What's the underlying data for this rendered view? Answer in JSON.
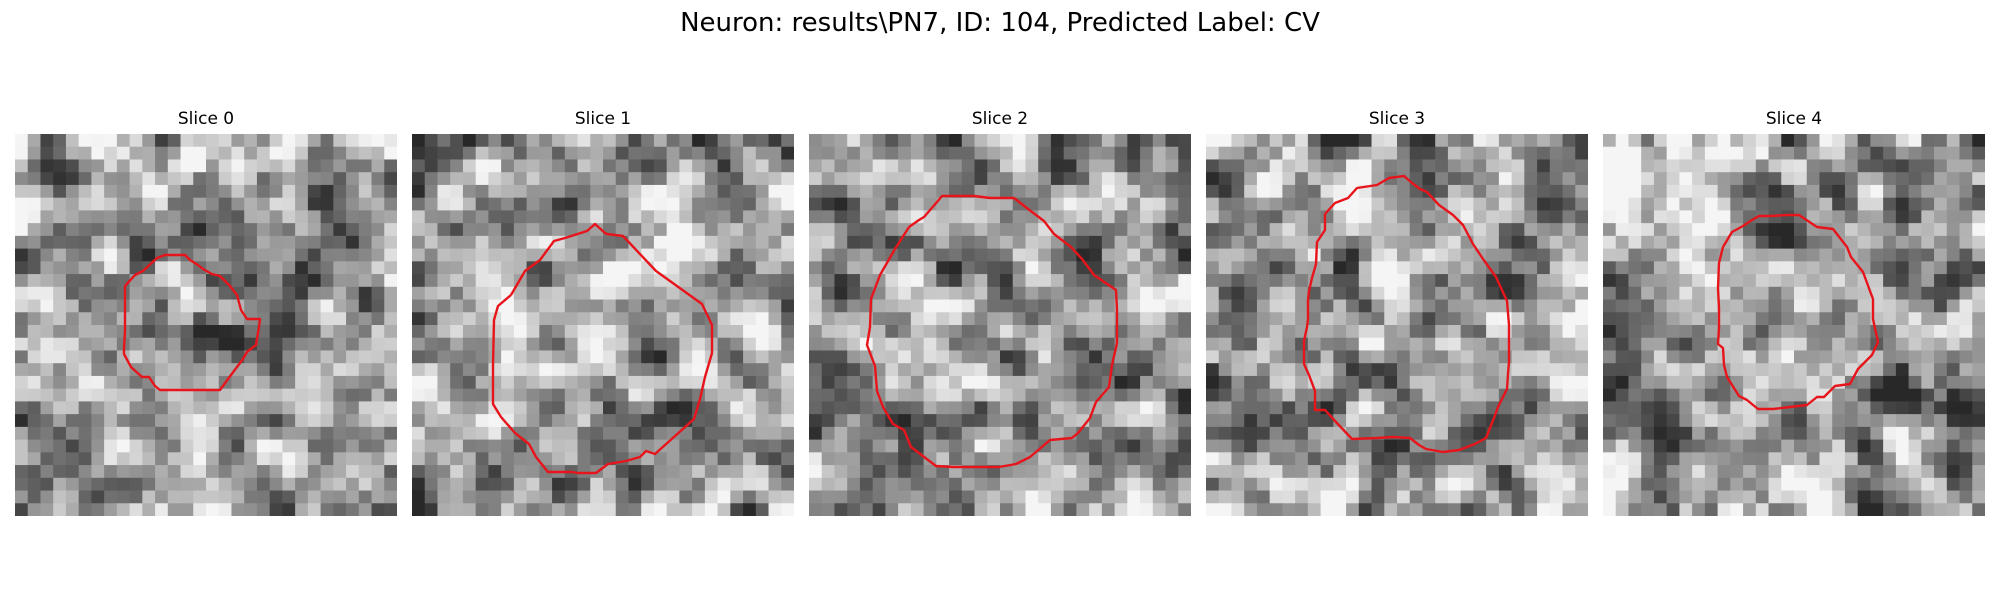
{
  "figure": {
    "title": "Neuron: results\\PN7, ID: 104, Predicted Label: CV",
    "contour_color": "#e8141b",
    "image_colormap": "gray",
    "image_grid_cells": 30
  },
  "panels": [
    {
      "label": "Slice 0",
      "seed": 11
    },
    {
      "label": "Slice 1",
      "seed": 29
    },
    {
      "label": "Slice 2",
      "seed": 47
    },
    {
      "label": "Slice 3",
      "seed": 83
    },
    {
      "label": "Slice 4",
      "seed": 101
    }
  ]
}
